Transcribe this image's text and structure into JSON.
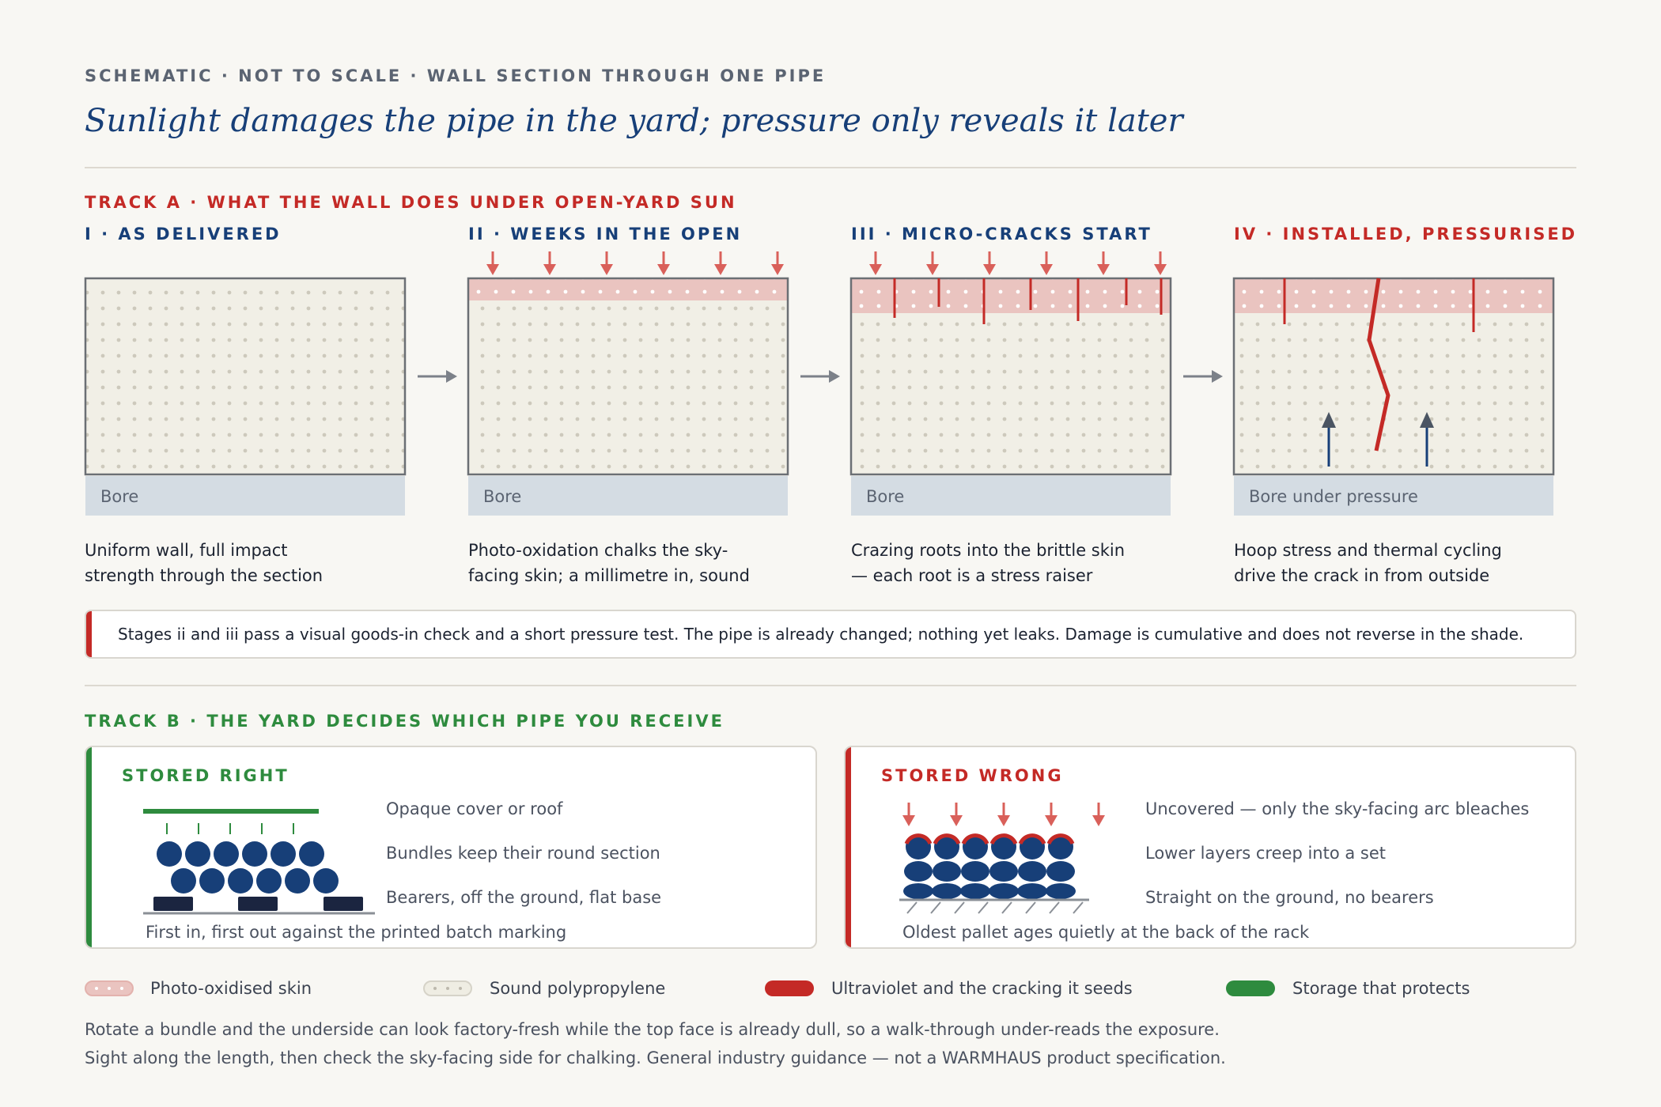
{
  "header": {
    "kicker": "SCHEMATIC · NOT TO SCALE · WALL SECTION THROUGH ONE PIPE",
    "title": "Sunlight damages the pipe in the yard; pressure only reveals it later"
  },
  "track_a": {
    "title": "TRACK A · WHAT THE WALL DOES UNDER OPEN-YARD SUN",
    "stages": [
      {
        "label": "I · AS DELIVERED",
        "bore": "Bore",
        "caption_1": "Uniform wall, full impact",
        "caption_2": "strength through the section"
      },
      {
        "label": "II · WEEKS IN THE OPEN",
        "bore": "Bore",
        "caption_1": "Photo-oxidation chalks the sky-",
        "caption_2": "facing skin; a millimetre in, sound"
      },
      {
        "label": "III · MICRO-CRACKS START",
        "bore": "Bore",
        "caption_1": "Crazing roots into the brittle skin",
        "caption_2": "— each root is a stress raiser"
      },
      {
        "label": "IV · INSTALLED, PRESSURISED",
        "bore": "Bore under pressure",
        "caption_1": "Hoop stress and thermal cycling",
        "caption_2": "drive the crack in from outside"
      }
    ],
    "note": "Stages ii and iii pass a visual goods-in check and a short pressure test. The pipe is already changed; nothing yet leaks. Damage is cumulative and does not reverse in the shade."
  },
  "track_b": {
    "title": "TRACK B · THE YARD DECIDES WHICH PIPE YOU RECEIVE",
    "right": {
      "title": "STORED RIGHT",
      "labels": [
        "Opaque cover or roof",
        "Bundles keep their round section",
        "Bearers, off the ground, flat base"
      ],
      "footer": "First in, first out against the printed batch marking"
    },
    "wrong": {
      "title": "STORED WRONG",
      "labels": [
        "Uncovered — only the sky-facing arc bleaches",
        "Lower layers creep into a set",
        "Straight on the ground, no bearers"
      ],
      "footer": "Oldest pallet ages quietly at the back of the rack"
    }
  },
  "legend": [
    {
      "label": "Photo-oxidised skin",
      "color": "#eac4c0"
    },
    {
      "label": "Sound polypropylene",
      "color": "#efede3"
    },
    {
      "label": "Ultraviolet and the cracking it seeds",
      "color": "#c42a26"
    },
    {
      "label": "Storage that protects",
      "color": "#2e8b3e"
    }
  ],
  "footer": {
    "line_1": "Rotate a bundle and the underside can look factory-fresh while the top face is already dull, so a walk-through under-reads the exposure.",
    "line_2": "Sight along the length, then check the sky-facing side for chalking. General industry guidance — not a WARMHAUS product specification."
  },
  "colors": {
    "accent_blue": "#173f78",
    "accent_red": "#c42a26",
    "accent_green": "#2e8b3e",
    "skin_pink": "#eac4c0",
    "wall_cream": "#f1efe6",
    "bore_grey": "#d4dce3"
  }
}
